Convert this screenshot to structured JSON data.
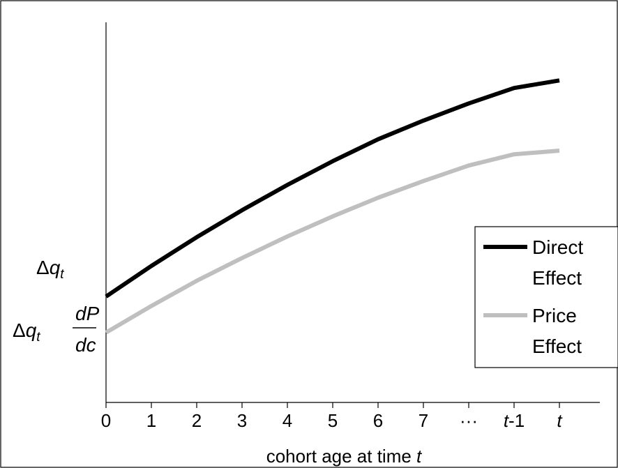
{
  "chart_data": {
    "type": "line",
    "x_tick_labels": [
      "0",
      "1",
      "2",
      "3",
      "4",
      "5",
      "6",
      "7",
      "···",
      "t-1",
      "t"
    ],
    "x": [
      0,
      1,
      2,
      3,
      4,
      5,
      6,
      7,
      8,
      9,
      10
    ],
    "xlabel": "cohort age at time t",
    "y_tick_labels": [
      "Δq_t",
      "Δq_t dP/dc"
    ],
    "series": [
      {
        "name": "Direct Effect",
        "color": "#000000",
        "values": [
          58.5,
          75.4,
          91.3,
          106.2,
          120.2,
          133.3,
          145.4,
          155.7,
          165.2,
          173.7,
          177.9
        ]
      },
      {
        "name": "Price Effect",
        "color": "#bfbfbf",
        "values": [
          38.6,
          53.3,
          67.2,
          79.8,
          91.7,
          102.8,
          113.1,
          122.3,
          130.9,
          137.1,
          139.1
        ]
      }
    ],
    "ylim": [
      0,
      210
    ],
    "grid": false,
    "legend_position": "right"
  }
}
